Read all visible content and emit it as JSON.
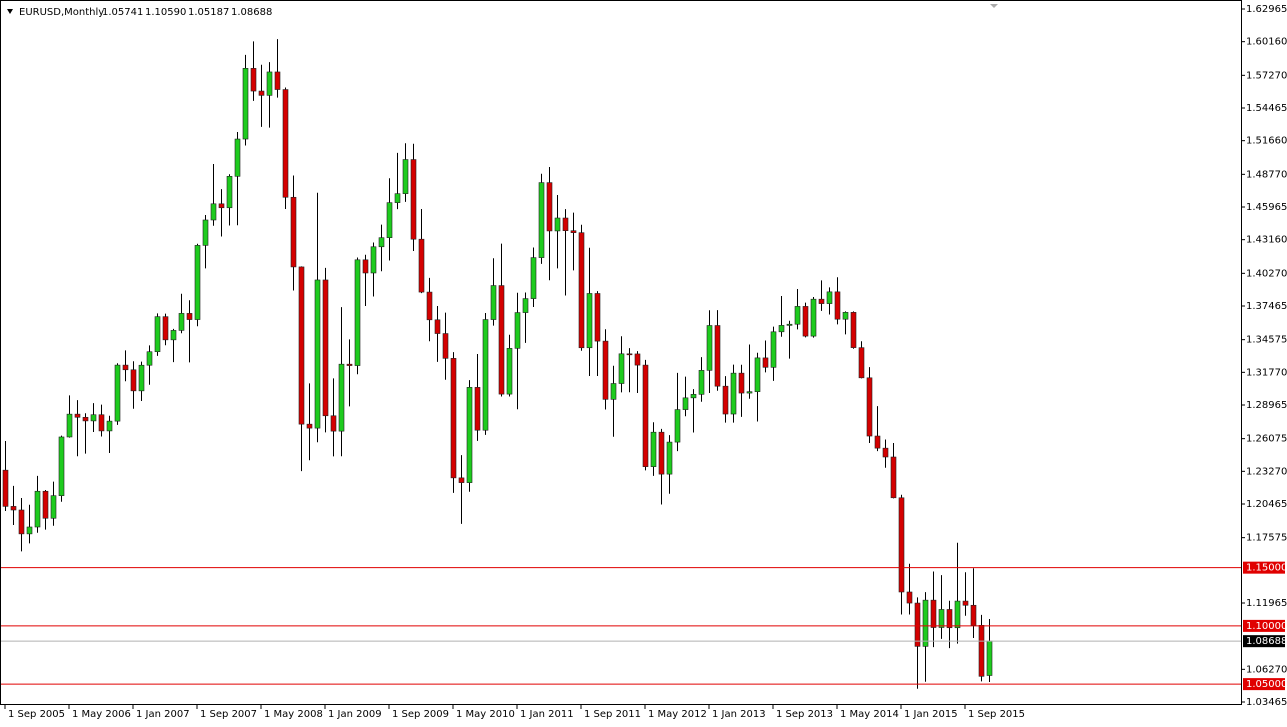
{
  "chart_data": {
    "type": "candlestick",
    "title": "EURUSD,Monthly",
    "ohlc_labels": [
      "1.05741",
      "1.10590",
      "1.05187",
      "1.08688"
    ],
    "categories": [
      "1 Sep 2005",
      null,
      null,
      null,
      null,
      null,
      null,
      null,
      "1 May 2006",
      null,
      null,
      null,
      null,
      null,
      null,
      null,
      "1 Jan 2007",
      null,
      null,
      null,
      null,
      null,
      null,
      null,
      "1 Sep 2007",
      null,
      null,
      null,
      null,
      null,
      null,
      null,
      "1 May 2008",
      null,
      null,
      null,
      null,
      null,
      null,
      null,
      "1 Jan 2009",
      null,
      null,
      null,
      null,
      null,
      null,
      null,
      "1 Sep 2009",
      null,
      null,
      null,
      null,
      null,
      null,
      null,
      "1 May 2010",
      null,
      null,
      null,
      null,
      null,
      null,
      null,
      "1 Jan 2011",
      null,
      null,
      null,
      null,
      null,
      null,
      null,
      "1 Sep 2011",
      null,
      null,
      null,
      null,
      null,
      null,
      null,
      "1 May 2012",
      null,
      null,
      null,
      null,
      null,
      null,
      null,
      "1 Jan 2013",
      null,
      null,
      null,
      null,
      null,
      null,
      null,
      "1 Sep 2013",
      null,
      null,
      null,
      null,
      null,
      null,
      null,
      "1 May 2014",
      null,
      null,
      null,
      null,
      null,
      null,
      null,
      "1 Jan 2015",
      null,
      null,
      null,
      null,
      null,
      null,
      null,
      "1 Sep 2015",
      null,
      null,
      null
    ],
    "open": [
      1.2337,
      1.2026,
      1.1995,
      1.179,
      1.1849,
      1.2156,
      1.1924,
      1.2118,
      1.2622,
      1.2818,
      1.2791,
      1.276,
      1.2813,
      1.2674,
      1.2758,
      1.3239,
      1.3199,
      1.3018,
      1.3238,
      1.3354,
      1.3655,
      1.3456,
      1.3537,
      1.3683,
      1.363,
      1.4267,
      1.4485,
      1.4624,
      1.459,
      1.486,
      1.518,
      1.5787,
      1.5592,
      1.5555,
      1.5756,
      1.5605,
      1.468,
      1.4082,
      1.2732,
      1.2698,
      1.397,
      1.2804,
      1.2672,
      1.3247,
      1.3235,
      1.4143,
      1.403,
      1.4255,
      1.4333,
      1.4634,
      1.4711,
      1.5004,
      1.432,
      1.3866,
      1.3628,
      1.351,
      1.3297,
      1.2271,
      1.223,
      1.3048,
      1.268,
      1.363,
      1.3922,
      1.299,
      1.3383,
      1.369,
      1.381,
      1.4162,
      1.4806,
      1.4391,
      1.4502,
      1.4393,
      1.4376,
      1.3388,
      1.3854,
      1.3445,
      1.2945,
      1.3081,
      1.3336,
      1.3335,
      1.3239,
      1.2367,
      1.2663,
      1.2303,
      1.2578,
      1.2857,
      1.2958,
      1.2988,
      1.3194,
      1.3579,
      1.3058,
      1.2819,
      1.317,
      1.2999,
      1.3011,
      1.3301,
      1.322,
      1.3525,
      1.358,
      1.359,
      1.3743,
      1.3488,
      1.3805,
      1.3767,
      1.3868,
      1.3633,
      1.3692,
      1.3389,
      1.313,
      1.263,
      1.2526,
      1.245,
      1.21,
      1.1291,
      1.1196,
      1.0824,
      1.1221,
      1.0986,
      1.1141,
      1.0984,
      1.1213,
      1.1177,
      1.1005,
      1.05741
    ],
    "high": [
      1.2587,
      1.2202,
      1.2098,
      1.204,
      1.2288,
      1.2167,
      1.2239,
      1.2634,
      1.2979,
      1.2938,
      1.2826,
      1.2913,
      1.29,
      1.2804,
      1.3255,
      1.3366,
      1.3272,
      1.3269,
      1.3408,
      1.3683,
      1.3681,
      1.355,
      1.3852,
      1.3796,
      1.4281,
      1.4528,
      1.4966,
      1.475,
      1.4878,
      1.524,
      1.5903,
      1.6018,
      1.5818,
      1.584,
      1.6038,
      1.5623,
      1.4867,
      1.4087,
      1.3082,
      1.4719,
      1.4074,
      1.3125,
      1.3737,
      1.346,
      1.4163,
      1.4187,
      1.4292,
      1.4445,
      1.4843,
      1.5061,
      1.5144,
      1.514,
      1.4579,
      1.3988,
      1.3747,
      1.369,
      1.335,
      1.2466,
      1.311,
      1.3334,
      1.3686,
      1.4157,
      1.4282,
      1.35,
      1.386,
      1.3862,
      1.4249,
      1.4882,
      1.494,
      1.47,
      1.4578,
      1.4548,
      1.4444,
      1.4247,
      1.3874,
      1.3547,
      1.3234,
      1.3487,
      1.3385,
      1.3359,
      1.3284,
      1.2748,
      1.2692,
      1.2638,
      1.3172,
      1.314,
      1.3033,
      1.3308,
      1.371,
      1.3711,
      1.3144,
      1.3243,
      1.3242,
      1.3416,
      1.3345,
      1.345,
      1.3569,
      1.3832,
      1.362,
      1.3892,
      1.3775,
      1.3824,
      1.3967,
      1.3906,
      1.3993,
      1.37,
      1.37,
      1.3444,
      1.3222,
      1.2887,
      1.26,
      1.257,
      1.2126,
      1.1534,
      1.1245,
      1.129,
      1.1467,
      1.1436,
      1.1216,
      1.1714,
      1.146,
      1.1495,
      1.1095,
      1.1059
    ],
    "low": [
      1.1986,
      1.1866,
      1.164,
      1.1708,
      1.18,
      1.1826,
      1.186,
      1.2066,
      1.2616,
      1.2457,
      1.2479,
      1.2665,
      1.2626,
      1.2484,
      1.2726,
      1.31,
      1.2864,
      1.2931,
      1.307,
      1.3318,
      1.341,
      1.3265,
      1.3513,
      1.3263,
      1.3573,
      1.407,
      1.4436,
      1.4343,
      1.4438,
      1.444,
      1.5125,
      1.5508,
      1.5284,
      1.5278,
      1.5536,
      1.4579,
      1.388,
      1.2329,
      1.2422,
      1.2577,
      1.2661,
      1.2455,
      1.2456,
      1.2885,
      1.316,
      1.3747,
      1.3828,
      1.4045,
      1.4137,
      1.4578,
      1.464,
      1.4219,
      1.3857,
      1.3444,
      1.3267,
      1.3113,
      1.2142,
      1.1876,
      1.2152,
      1.2588,
      1.264,
      1.3578,
      1.2969,
      1.297,
      1.286,
      1.343,
      1.3738,
      1.4108,
      1.3968,
      1.407,
      1.3837,
      1.4052,
      1.3362,
      1.3145,
      1.3145,
      1.2858,
      1.2624,
      1.3005,
      1.3006,
      1.3,
      1.2335,
      1.2288,
      1.2042,
      1.2134,
      1.25,
      1.28,
      1.266,
      1.2924,
      1.3,
      1.3019,
      1.2745,
      1.2745,
      1.2795,
      1.295,
      1.2755,
      1.3177,
      1.3104,
      1.3483,
      1.3295,
      1.3546,
      1.3477,
      1.3475,
      1.3705,
      1.3673,
      1.3589,
      1.3503,
      1.3379,
      1.3125,
      1.257,
      1.25,
      1.2358,
      1.2095,
      1.1098,
      1.1098,
      1.046,
      1.052,
      1.0818,
      1.0888,
      1.0809,
      1.0848,
      1.1087,
      1.0896,
      1.0524,
      1.05187
    ],
    "close": [
      1.2026,
      1.1995,
      1.179,
      1.1849,
      1.2156,
      1.1924,
      1.2118,
      1.2622,
      1.2818,
      1.2791,
      1.276,
      1.2813,
      1.2674,
      1.2758,
      1.3239,
      1.3199,
      1.3018,
      1.3238,
      1.3354,
      1.3655,
      1.3456,
      1.3537,
      1.3683,
      1.363,
      1.4267,
      1.4485,
      1.4624,
      1.459,
      1.486,
      1.518,
      1.5787,
      1.5592,
      1.5555,
      1.5756,
      1.5605,
      1.468,
      1.4082,
      1.2732,
      1.2698,
      1.397,
      1.2804,
      1.2672,
      1.3247,
      1.3235,
      1.4143,
      1.403,
      1.4255,
      1.4333,
      1.4634,
      1.4711,
      1.5004,
      1.432,
      1.3866,
      1.3628,
      1.351,
      1.3297,
      1.2271,
      1.223,
      1.3048,
      1.268,
      1.363,
      1.3922,
      1.299,
      1.3383,
      1.369,
      1.381,
      1.4162,
      1.4806,
      1.4391,
      1.4502,
      1.4393,
      1.4376,
      1.3388,
      1.3854,
      1.3445,
      1.2945,
      1.3081,
      1.3336,
      1.3335,
      1.3239,
      1.2367,
      1.2663,
      1.2303,
      1.2578,
      1.2857,
      1.2958,
      1.2988,
      1.3194,
      1.3579,
      1.3058,
      1.2819,
      1.317,
      1.2999,
      1.3011,
      1.3301,
      1.322,
      1.3525,
      1.358,
      1.359,
      1.3743,
      1.3488,
      1.3805,
      1.3767,
      1.3868,
      1.3633,
      1.3692,
      1.3389,
      1.313,
      1.263,
      1.2526,
      1.245,
      1.21,
      1.1291,
      1.1196,
      1.0824,
      1.1221,
      1.0986,
      1.1141,
      1.0984,
      1.1213,
      1.1177,
      1.1005,
      1.0567,
      1.08688
    ],
    "up_color": "#1ecb1e",
    "down_color": "#d40000",
    "ylim": [
      1.03465,
      1.62965
    ],
    "yticks": [
      {
        "value": 1.62965,
        "label": "1.62965"
      },
      {
        "value": 1.6016,
        "label": "1.60160"
      },
      {
        "value": 1.5727,
        "label": "1.57270"
      },
      {
        "value": 1.54465,
        "label": "1.54465"
      },
      {
        "value": 1.5166,
        "label": "1.51660"
      },
      {
        "value": 1.4877,
        "label": "1.48770"
      },
      {
        "value": 1.45965,
        "label": "1.45965"
      },
      {
        "value": 1.4316,
        "label": "1.43160"
      },
      {
        "value": 1.4027,
        "label": "1.40270"
      },
      {
        "value": 1.37465,
        "label": "1.37465"
      },
      {
        "value": 1.34575,
        "label": "1.34575"
      },
      {
        "value": 1.3177,
        "label": "1.31770"
      },
      {
        "value": 1.28965,
        "label": "1.28965"
      },
      {
        "value": 1.26075,
        "label": "1.26075"
      },
      {
        "value": 1.2327,
        "label": "1.23270"
      },
      {
        "value": 1.20465,
        "label": "1.20465"
      },
      {
        "value": 1.17575,
        "label": "1.17575"
      },
      {
        "value": 1.11965,
        "label": "1.11965"
      },
      {
        "value": 1.0627,
        "label": "1.06270"
      },
      {
        "value": 1.03465,
        "label": "1.03465"
      }
    ],
    "hlines": [
      {
        "value": 1.15,
        "label": "1.15000",
        "color": "#e00000"
      },
      {
        "value": 1.1,
        "label": "1.10000",
        "color": "#e00000"
      },
      {
        "value": 1.05,
        "label": "1.05000",
        "color": "#e00000"
      }
    ],
    "last_price_color": "#b0b0b0"
  }
}
